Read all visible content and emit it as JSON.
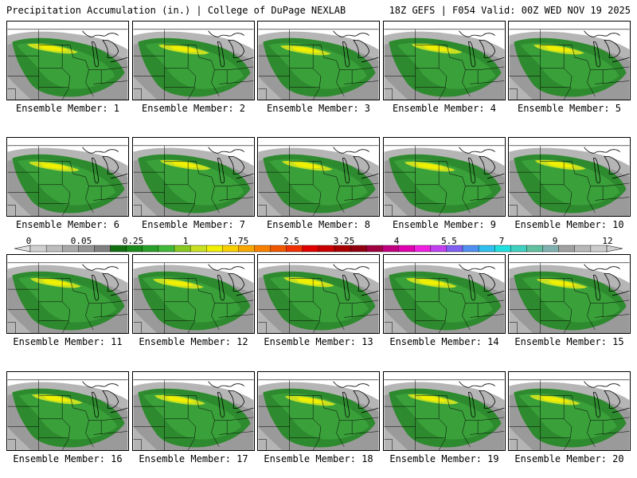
{
  "header": {
    "title_left": "Precipitation Accumulation (in.) | College of DuPage NEXLAB",
    "title_right": "18Z GEFS | F054 Valid: 00Z WED NOV 19 2025"
  },
  "colorbar": {
    "tick_labels": [
      "0",
      "0.05",
      "0.25",
      "1",
      "1.75",
      "2.5",
      "3.25",
      "4",
      "5.5",
      "7",
      "9",
      "12"
    ],
    "colors": [
      "#d0d0d0",
      "#bdbdbd",
      "#a9a9a9",
      "#959595",
      "#7f7f7f",
      "#107010",
      "#1a8a1a",
      "#28a028",
      "#40b838",
      "#88c820",
      "#c8e020",
      "#f0f000",
      "#f8d000",
      "#f8a800",
      "#f88000",
      "#f05800",
      "#f03000",
      "#e00000",
      "#c80000",
      "#a80000",
      "#900010",
      "#a00040",
      "#c00080",
      "#e000b0",
      "#f020e0",
      "#c040f0",
      "#8060f0",
      "#5090f0",
      "#30c0f0",
      "#20e0e0",
      "#40d0c0",
      "#60c0a0",
      "#80b0b0",
      "#a0a0a0",
      "#b8b8b8",
      "#cccccc"
    ]
  },
  "members": [
    {
      "label": "Ensemble Member: 1"
    },
    {
      "label": "Ensemble Member: 2"
    },
    {
      "label": "Ensemble Member: 3"
    },
    {
      "label": "Ensemble Member: 4"
    },
    {
      "label": "Ensemble Member: 5"
    },
    {
      "label": "Ensemble Member: 6"
    },
    {
      "label": "Ensemble Member: 7"
    },
    {
      "label": "Ensemble Member: 8"
    },
    {
      "label": "Ensemble Member: 9"
    },
    {
      "label": "Ensemble Member: 10"
    },
    {
      "label": "Ensemble Member: 11"
    },
    {
      "label": "Ensemble Member: 12"
    },
    {
      "label": "Ensemble Member: 13"
    },
    {
      "label": "Ensemble Member: 14"
    },
    {
      "label": "Ensemble Member: 15"
    },
    {
      "label": "Ensemble Member: 16"
    },
    {
      "label": "Ensemble Member: 17"
    },
    {
      "label": "Ensemble Member: 18"
    },
    {
      "label": "Ensemble Member: 19"
    },
    {
      "label": "Ensemble Member: 20"
    }
  ]
}
